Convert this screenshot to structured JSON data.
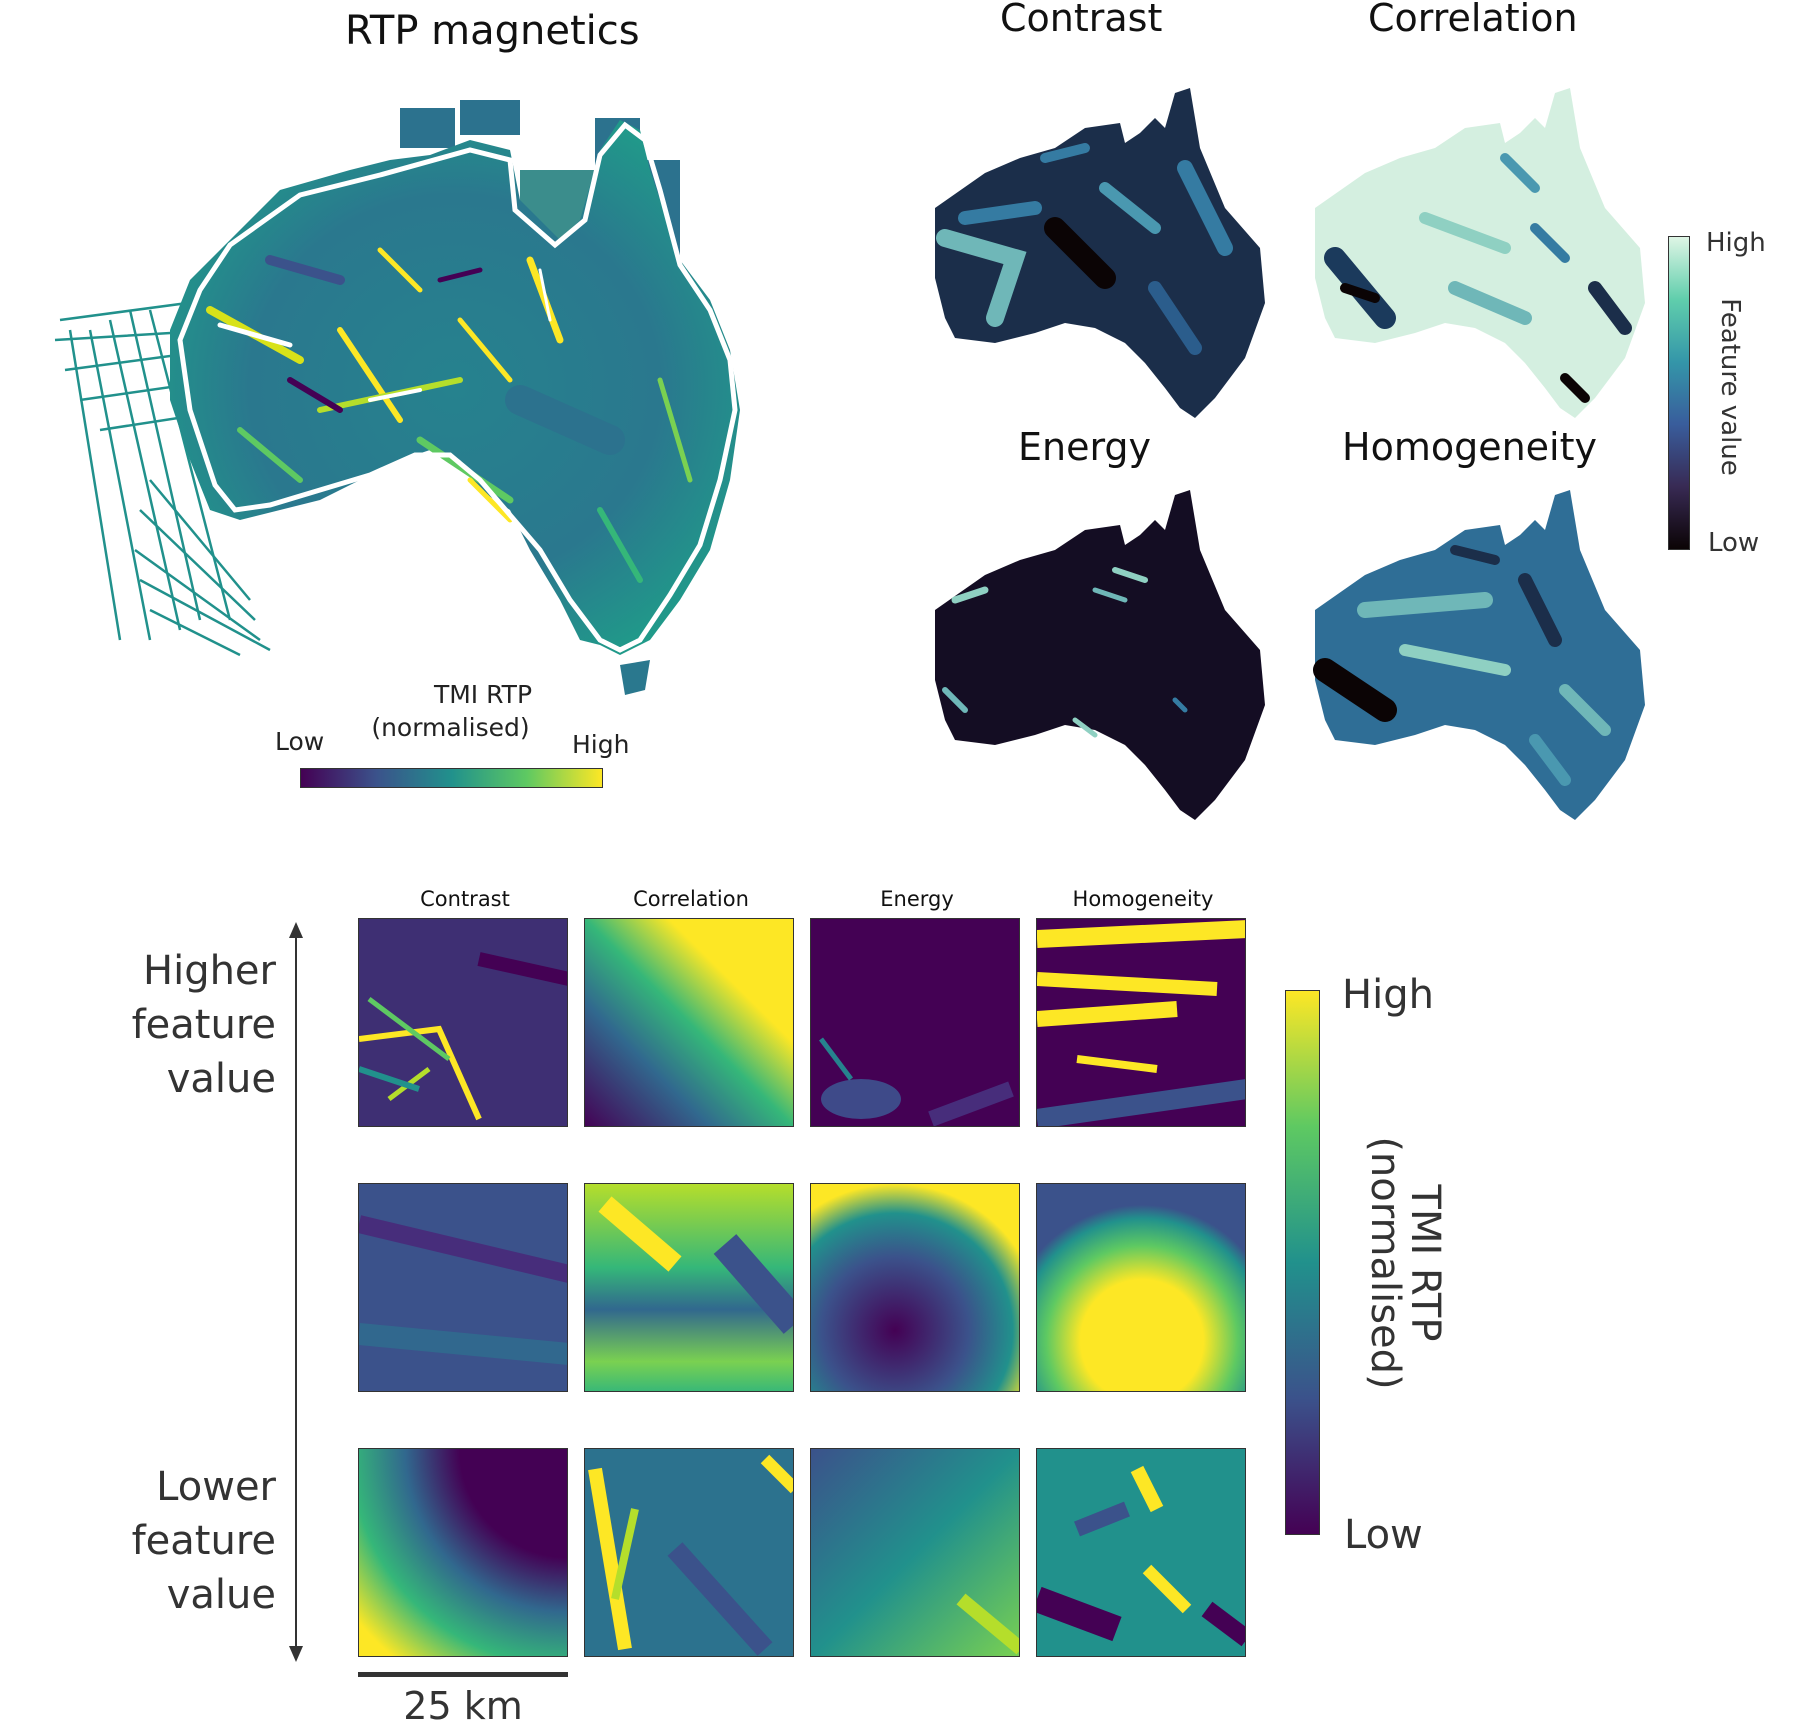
{
  "main_map": {
    "title": "RTP magnetics",
    "colorbar": {
      "title_line1": "TMI RTP",
      "title_line2": "(normalised)",
      "low": "Low",
      "high": "High",
      "colormap": "viridis"
    }
  },
  "feature_maps": {
    "panels": [
      {
        "title": "Contrast"
      },
      {
        "title": "Correlation"
      },
      {
        "title": "Energy"
      },
      {
        "title": "Homogeneity"
      }
    ],
    "colorbar": {
      "label": "Feature value",
      "low": "Low",
      "high": "High",
      "colormap": "mako-like"
    }
  },
  "examples": {
    "columns": [
      "Contrast",
      "Correlation",
      "Energy",
      "Homogeneity"
    ],
    "axis_top": "Higher feature value",
    "axis_bottom": "Lower feature value",
    "scalebar": "25 km",
    "colorbar": {
      "label_line1": "TMI RTP",
      "label_line2": "(normalised)",
      "low": "Low",
      "high": "High"
    }
  },
  "colors": {
    "viridis_low": "#440154",
    "viridis_mid": "#21918c",
    "viridis_high": "#fde725",
    "mako_low": "#0b0405",
    "mako_mid": "#357ba2",
    "mako_high": "#def5e5"
  }
}
